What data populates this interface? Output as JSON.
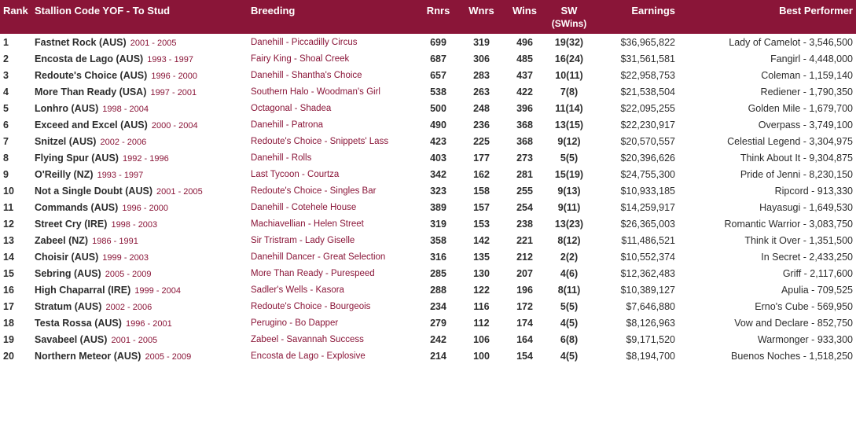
{
  "headers": {
    "rank": "Rank",
    "stallion": "Stallion Code YOF - To Stud",
    "breeding": "Breeding",
    "rnrs": "Rnrs",
    "wnrs": "Wnrs",
    "wins": "Wins",
    "sw": "SW",
    "sw_sub": "(SWins)",
    "earnings": "Earnings",
    "best": "Best Performer"
  },
  "rows": [
    {
      "rank": "1",
      "name": "Fastnet Rock (AUS)",
      "yof": "2001 - 2005",
      "breeding": "Danehill - Piccadilly Circus",
      "rnrs": "699",
      "wnrs": "319",
      "wins": "496",
      "sw": "19(32)",
      "earn": "$36,965,822",
      "best": "Lady of Camelot - 3,546,500"
    },
    {
      "rank": "2",
      "name": "Encosta de Lago (AUS)",
      "yof": "1993 - 1997",
      "breeding": "Fairy King - Shoal Creek",
      "rnrs": "687",
      "wnrs": "306",
      "wins": "485",
      "sw": "16(24)",
      "earn": "$31,561,581",
      "best": "Fangirl - 4,448,000"
    },
    {
      "rank": "3",
      "name": "Redoute's Choice (AUS)",
      "yof": "1996 - 2000",
      "breeding": "Danehill - Shantha's Choice",
      "rnrs": "657",
      "wnrs": "283",
      "wins": "437",
      "sw": "10(11)",
      "earn": "$22,958,753",
      "best": "Coleman - 1,159,140"
    },
    {
      "rank": "4",
      "name": "More Than Ready (USA)",
      "yof": "1997 - 2001",
      "breeding": "Southern Halo - Woodman's Girl",
      "rnrs": "538",
      "wnrs": "263",
      "wins": "422",
      "sw": "7(8)",
      "earn": "$21,538,504",
      "best": "Rediener - 1,790,350"
    },
    {
      "rank": "5",
      "name": "Lonhro (AUS)",
      "yof": "1998 - 2004",
      "breeding": "Octagonal - Shadea",
      "rnrs": "500",
      "wnrs": "248",
      "wins": "396",
      "sw": "11(14)",
      "earn": "$22,095,255",
      "best": "Golden Mile - 1,679,700"
    },
    {
      "rank": "6",
      "name": "Exceed and Excel (AUS)",
      "yof": "2000 - 2004",
      "breeding": "Danehill - Patrona",
      "rnrs": "490",
      "wnrs": "236",
      "wins": "368",
      "sw": "13(15)",
      "earn": "$22,230,917",
      "best": "Overpass - 3,749,100"
    },
    {
      "rank": "7",
      "name": "Snitzel (AUS)",
      "yof": "2002 - 2006",
      "breeding": "Redoute's Choice - Snippets' Lass",
      "rnrs": "423",
      "wnrs": "225",
      "wins": "368",
      "sw": "9(12)",
      "earn": "$20,570,557",
      "best": "Celestial Legend - 3,304,975"
    },
    {
      "rank": "8",
      "name": "Flying Spur (AUS)",
      "yof": "1992 - 1996",
      "breeding": "Danehill - Rolls",
      "rnrs": "403",
      "wnrs": "177",
      "wins": "273",
      "sw": "5(5)",
      "earn": "$20,396,626",
      "best": "Think About It - 9,304,875"
    },
    {
      "rank": "9",
      "name": "O'Reilly (NZ)",
      "yof": "1993 - 1997",
      "breeding": "Last Tycoon - Courtza",
      "rnrs": "342",
      "wnrs": "162",
      "wins": "281",
      "sw": "15(19)",
      "earn": "$24,755,300",
      "best": "Pride of Jenni - 8,230,150"
    },
    {
      "rank": "10",
      "name": "Not a Single Doubt (AUS)",
      "yof": "2001 - 2005",
      "breeding": "Redoute's Choice - Singles Bar",
      "rnrs": "323",
      "wnrs": "158",
      "wins": "255",
      "sw": "9(13)",
      "earn": "$10,933,185",
      "best": "Ripcord - 913,330"
    },
    {
      "rank": "11",
      "name": "Commands (AUS)",
      "yof": "1996 - 2000",
      "breeding": "Danehill - Cotehele House",
      "rnrs": "389",
      "wnrs": "157",
      "wins": "254",
      "sw": "9(11)",
      "earn": "$14,259,917",
      "best": "Hayasugi - 1,649,530"
    },
    {
      "rank": "12",
      "name": "Street Cry (IRE)",
      "yof": "1998 - 2003",
      "breeding": "Machiavellian - Helen Street",
      "rnrs": "319",
      "wnrs": "153",
      "wins": "238",
      "sw": "13(23)",
      "earn": "$26,365,003",
      "best": "Romantic Warrior - 3,083,750"
    },
    {
      "rank": "13",
      "name": "Zabeel (NZ)",
      "yof": "1986 - 1991",
      "breeding": "Sir Tristram - Lady Giselle",
      "rnrs": "358",
      "wnrs": "142",
      "wins": "221",
      "sw": "8(12)",
      "earn": "$11,486,521",
      "best": "Think it Over - 1,351,500"
    },
    {
      "rank": "14",
      "name": "Choisir (AUS)",
      "yof": "1999 - 2003",
      "breeding": "Danehill Dancer - Great Selection",
      "rnrs": "316",
      "wnrs": "135",
      "wins": "212",
      "sw": "2(2)",
      "earn": "$10,552,374",
      "best": "In Secret - 2,433,250"
    },
    {
      "rank": "15",
      "name": "Sebring (AUS)",
      "yof": "2005 - 2009",
      "breeding": "More Than Ready - Purespeed",
      "rnrs": "285",
      "wnrs": "130",
      "wins": "207",
      "sw": "4(6)",
      "earn": "$12,362,483",
      "best": "Griff - 2,117,600"
    },
    {
      "rank": "16",
      "name": "High Chaparral (IRE)",
      "yof": "1999 - 2004",
      "breeding": "Sadler's Wells - Kasora",
      "rnrs": "288",
      "wnrs": "122",
      "wins": "196",
      "sw": "8(11)",
      "earn": "$10,389,127",
      "best": "Apulia - 709,525"
    },
    {
      "rank": "17",
      "name": "Stratum (AUS)",
      "yof": "2002 - 2006",
      "breeding": "Redoute's Choice - Bourgeois",
      "rnrs": "234",
      "wnrs": "116",
      "wins": "172",
      "sw": "5(5)",
      "earn": "$7,646,880",
      "best": "Erno's Cube - 569,950"
    },
    {
      "rank": "18",
      "name": "Testa Rossa (AUS)",
      "yof": "1996 - 2001",
      "breeding": "Perugino - Bo Dapper",
      "rnrs": "279",
      "wnrs": "112",
      "wins": "174",
      "sw": "4(5)",
      "earn": "$8,126,963",
      "best": "Vow and Declare - 852,750"
    },
    {
      "rank": "19",
      "name": "Savabeel (AUS)",
      "yof": "2001 - 2005",
      "breeding": "Zabeel - Savannah Success",
      "rnrs": "242",
      "wnrs": "106",
      "wins": "164",
      "sw": "6(8)",
      "earn": "$9,171,520",
      "best": "Warmonger - 933,300"
    },
    {
      "rank": "20",
      "name": "Northern Meteor (AUS)",
      "yof": "2005 - 2009",
      "breeding": "Encosta de Lago - Explosive",
      "rnrs": "214",
      "wnrs": "100",
      "wins": "154",
      "sw": "4(5)",
      "earn": "$8,194,700",
      "best": "Buenos Noches - 1,518,250"
    }
  ]
}
